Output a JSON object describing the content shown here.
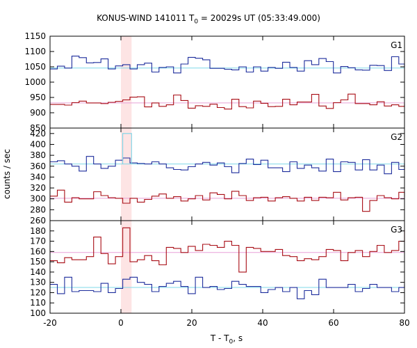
{
  "chart_data": {
    "type": "line",
    "title_prefix": "KONUS-WIND 141011 T",
    "title_sub": "0",
    "title_suffix": " = 20029s UT (05:33:49.000)",
    "xlabel_prefix": "T - T",
    "xlabel_sub": "0",
    "xlabel_suffix": ", s",
    "ylabel": "counts / sec",
    "xlim": [
      -20,
      80
    ],
    "xticks": [
      -20,
      0,
      20,
      40,
      60,
      80
    ],
    "highlight_interval": [
      0,
      3
    ],
    "colors": {
      "upper": "#1c2c9c",
      "lower": "#a80c14",
      "upper_bg": "#7fd8e8",
      "lower_bg": "#e8a0d8",
      "trigger": "#7ad3e6",
      "highlight": "#fde4e4"
    },
    "x_edges": [
      -20,
      -17.95,
      -15.9,
      -13.85,
      -11.8,
      -9.75,
      -7.7,
      -5.65,
      -3.6,
      -1.55,
      0.5,
      2.55,
      4.6,
      6.65,
      8.7,
      10.75,
      12.8,
      14.85,
      16.9,
      18.95,
      21,
      23.05,
      25.1,
      27.15,
      29.2,
      31.25,
      33.3,
      35.35,
      37.4,
      39.45,
      41.5,
      43.55,
      45.6,
      47.65,
      49.7,
      51.75,
      53.8,
      55.85,
      57.9,
      59.95,
      62,
      64.05,
      66.1,
      68.15,
      70.2,
      72.25,
      74.3,
      76.35,
      78.4,
      80
    ],
    "panels": [
      {
        "label": "G1",
        "ylim": [
          850,
          1150
        ],
        "yticks": [
          850,
          900,
          950,
          1000,
          1050,
          1100,
          1150
        ],
        "upper": {
          "background": 1046,
          "values": [
            1043,
            1052,
            1046,
            1085,
            1080,
            1063,
            1064,
            1076,
            1043,
            1053,
            1057,
            1043,
            1057,
            1062,
            1033,
            1048,
            1050,
            1030,
            1059,
            1081,
            1078,
            1073,
            1045,
            1045,
            1042,
            1040,
            1050,
            1033,
            1050,
            1036,
            1048,
            1045,
            1065,
            1048,
            1036,
            1070,
            1057,
            1077,
            1067,
            1030,
            1051,
            1047,
            1040,
            1039,
            1055,
            1054,
            1038,
            1083,
            1059,
            1049
          ]
        },
        "lower": {
          "background": 932,
          "values": [
            927,
            927,
            925,
            933,
            938,
            932,
            932,
            930,
            934,
            937,
            942,
            951,
            952,
            919,
            932,
            921,
            926,
            958,
            940,
            915,
            923,
            921,
            928,
            917,
            912,
            944,
            920,
            916,
            938,
            931,
            920,
            921,
            944,
            926,
            935,
            935,
            960,
            922,
            914,
            933,
            942,
            961,
            930,
            930,
            926,
            936,
            922,
            926,
            921,
            929
          ]
        }
      },
      {
        "label": "G2",
        "ylim": [
          260,
          430
        ],
        "yticks": [
          260,
          280,
          300,
          320,
          340,
          360,
          380,
          400,
          420
        ],
        "upper": {
          "background": 364,
          "values": [
            368,
            370,
            364,
            360,
            351,
            378,
            364,
            356,
            360,
            371,
            375,
            366,
            365,
            364,
            368,
            364,
            357,
            354,
            353,
            359,
            364,
            367,
            362,
            366,
            359,
            348,
            365,
            373,
            363,
            371,
            357,
            357,
            350,
            368,
            356,
            362,
            357,
            351,
            373,
            350,
            368,
            367,
            353,
            372,
            353,
            362,
            346,
            367,
            354,
            365
          ]
        },
        "lower": {
          "background": 301,
          "values": [
            305,
            316,
            294,
            302,
            300,
            300,
            313,
            306,
            302,
            301,
            292,
            301,
            294,
            299,
            305,
            309,
            301,
            304,
            296,
            300,
            306,
            298,
            311,
            308,
            300,
            314,
            306,
            297,
            302,
            303,
            296,
            302,
            304,
            301,
            296,
            303,
            297,
            303,
            302,
            312,
            298,
            302,
            303,
            277,
            297,
            306,
            302,
            300,
            312,
            304
          ]
        }
      },
      {
        "label": "G3",
        "ylim": [
          100,
          190
        ],
        "yticks": [
          100,
          110,
          120,
          130,
          140,
          150,
          160,
          170,
          180
        ],
        "upper": {
          "background": 125,
          "values": [
            128,
            119,
            135,
            121,
            122,
            122,
            121,
            129,
            120,
            124,
            133,
            135,
            130,
            128,
            121,
            126,
            129,
            131,
            126,
            119,
            135,
            125,
            126,
            123,
            124,
            131,
            128,
            126,
            126,
            120,
            123,
            125,
            121,
            125,
            114,
            122,
            118,
            133,
            125,
            125,
            125,
            128,
            121,
            124,
            128,
            125,
            125,
            121,
            125,
            128
          ]
        },
        "lower": {
          "background": 159,
          "values": [
            151,
            149,
            154,
            152,
            152,
            155,
            174,
            158,
            148,
            155,
            183,
            150,
            152,
            156,
            151,
            147,
            164,
            163,
            159,
            165,
            161,
            167,
            166,
            164,
            170,
            166,
            140,
            164,
            163,
            160,
            160,
            162,
            156,
            155,
            151,
            153,
            152,
            155,
            162,
            161,
            151,
            159,
            161,
            155,
            160,
            166,
            159,
            161,
            170,
            181
          ]
        }
      }
    ],
    "trigger_burst": {
      "panel": "G2",
      "x": [
        0.5,
        3.0
      ],
      "value": 420
    }
  }
}
